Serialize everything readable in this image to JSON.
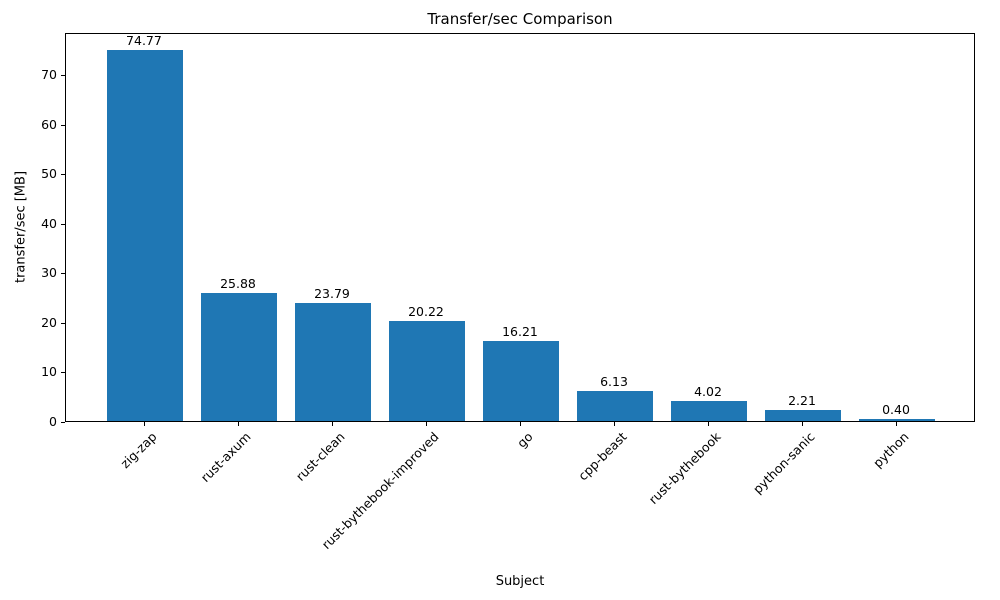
{
  "chart_data": {
    "type": "bar",
    "title": "Transfer/sec Comparison",
    "xlabel": "Subject",
    "ylabel": "transfer/sec [MB]",
    "categories": [
      "zig-zap",
      "rust-axum",
      "rust-clean",
      "rust-bythebook-improved",
      "go",
      "cpp-beast",
      "rust-bythebook",
      "python-sanic",
      "python"
    ],
    "values": [
      74.77,
      25.88,
      23.79,
      20.22,
      16.21,
      6.13,
      4.02,
      2.21,
      0.4
    ],
    "value_labels": [
      "74.77",
      "25.88",
      "23.79",
      "20.22",
      "16.21",
      "6.13",
      "4.02",
      "2.21",
      "0.40"
    ],
    "ylim": [
      0,
      78.5
    ],
    "yticks": [
      0,
      10,
      20,
      30,
      40,
      50,
      60,
      70
    ],
    "bar_color": "#1f77b4",
    "axis_color": "#000000",
    "background_color": "#ffffff",
    "grid": false,
    "legend_position": "none",
    "x_tick_rotation_deg": 45
  }
}
